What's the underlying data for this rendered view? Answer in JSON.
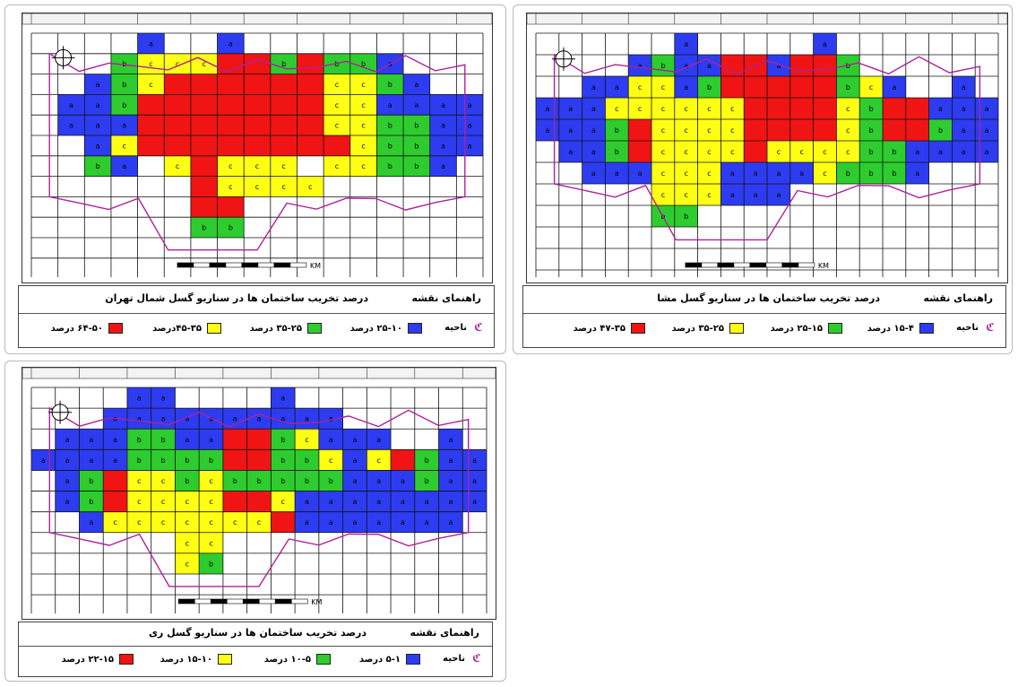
{
  "colors": {
    "blue": "#2d3cf0",
    "green": "#2ecc2e",
    "yellow": "#ffff14",
    "red": "#f01414",
    "boundary": "#b0209b",
    "grid": "#111111"
  },
  "icons": {
    "district_symbol": "district-boundary-icon",
    "compass": "compass-icon",
    "scale_bar": "scale-bar-icon"
  },
  "maps": [
    {
      "id": "north-tehran",
      "legend_heading": "راهنمای نقشه",
      "title": "درصد تخریب ساختمان ها در سناریو گسل شمال تهران",
      "district_label": "ناحیه",
      "classes": [
        {
          "color": "blue",
          "label": "۲۵-۱۰ درصد"
        },
        {
          "color": "green",
          "label": "۳۵-۲۵ درصد"
        },
        {
          "color": "yellow",
          "label": "۴۵-۳۵درصد"
        },
        {
          "color": "red",
          "label": "۶۴-۵۰ درصد"
        }
      ],
      "scale_unit": "KM",
      "grid": [
        "....B..B.........",
        "...GYYYRRGRGGB...",
        "..BGYRRRRRRYYGB..",
        ".BBGRRRRRRRYYBBBB",
        ".BBBRRRRRRRYYGGBB",
        "..BYRRRRRRRRYGGBB",
        "..GB.YRYYY.YYGGB.",
        "......RYYYY......",
        "......RR.........",
        "......GG........."
      ]
    },
    {
      "id": "mosha",
      "legend_heading": "راهنمای نقشه",
      "title": "درصد تخریب ساختمان ها در سناریو گسل مشا",
      "district_label": "ناحیه",
      "classes": [
        {
          "color": "blue",
          "label": "۱۵-۴ درصد"
        },
        {
          "color": "green",
          "label": "۲۵-۱۵ درصد"
        },
        {
          "color": "yellow",
          "label": "۳۵-۲۵ درصد"
        },
        {
          "color": "red",
          "label": "۴۷-۳۵ درصد"
        }
      ],
      "scale_unit": "KM",
      "grid": [
        "......B.....B.......",
        "....BGBBRRBRRG......",
        "..BBYYBGRRRRRGYB..B.",
        "BBBYYYYYYRRRRYGRRBBB",
        "BBBGRYYYYRRRRYGRRGBB",
        ".BBGRYYYYRYYYYGGBBBB",
        "..BBBYYYBBBBYGGGB...",
        ".....YYYBBB.........",
        ".....GG............."
      ]
    },
    {
      "id": "rey",
      "legend_heading": "راهنمای نقشه",
      "title": "درصد تخریب ساختمان ها در سناریو گسل ری",
      "district_label": "ناحیه",
      "classes": [
        {
          "color": "blue",
          "label": "۵-۱ درصد"
        },
        {
          "color": "green",
          "label": "۱۰-۵ درصد"
        },
        {
          "color": "yellow",
          "label": "۱۵-۱۰ درصد"
        },
        {
          "color": "red",
          "label": "۲۲-۱۵ درصد"
        }
      ],
      "scale_unit": "KM",
      "grid": [
        "....BB....B........",
        "...BBBBBBBBBB......",
        ".BBBGGBBRRGYBBB..B.",
        "BBBBGGGGRRGGYBYRGBB",
        ".BGRYYGYGGGGGBBBGBB",
        ".BGRYYYYRRYBBBBBBBB",
        "..BYYYYYYYRBBBBBBB.",
        "......YY...........",
        "......YG..........."
      ]
    }
  ]
}
